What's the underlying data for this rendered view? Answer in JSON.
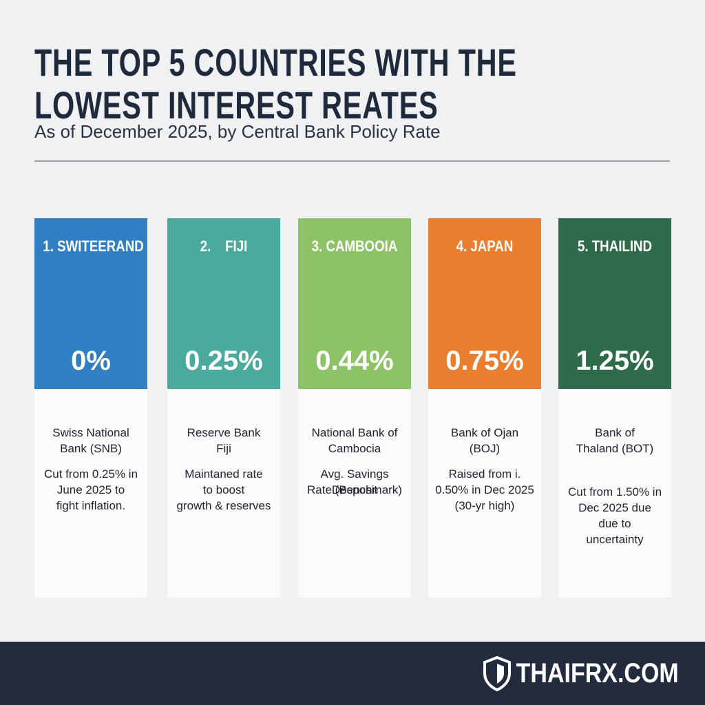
{
  "header": {
    "title": [
      "THE TOP 5 COUNTRIES WITH THE",
      "LOWEST INTEREST REATES"
    ],
    "subtitle": "As of December 2025, by Central Bank Policy Rate"
  },
  "cards": [
    {
      "label": "1. SWITEERAND",
      "value": "0%",
      "color": "#2f7fc2",
      "bank": [
        "Swiss National",
        "Bank (SNB)"
      ],
      "note": [
        "Cut from 0.25% in",
        "June 2025 to",
        "fight inflation."
      ]
    },
    {
      "label": "2.    FIJI",
      "value": "0.25%",
      "color": "#4aab9c",
      "bank": [
        "Reserve Bank",
        "Fiji"
      ],
      "note": [
        "Maintaned rate",
        "to boost",
        "growth & reserves"
      ]
    },
    {
      "label": "3. CAMBOOIA",
      "value": "0.44%",
      "color": "#8ec266",
      "bank": [
        "National Bank of",
        "Cambocia"
      ],
      "note": [
        "Avg. Savings Desposit",
        "Rate (Benchmark)"
      ]
    },
    {
      "label": "4. JAPAN",
      "value": "0.75%",
      "color": "#e87e2e",
      "bank": [
        "Bank of Ojan",
        "(BOJ)"
      ],
      "note": [
        "Raised from i.",
        "0.50% in Dec 2025",
        "(30-yr high)"
      ]
    },
    {
      "label": "5. THAILIND",
      "value": "1.25%",
      "color": "#2e6b4a",
      "bank": [
        "Bank of",
        "Thaland (BOT)"
      ],
      "note": [
        "Cut from 1.50% in",
        "Dec 2025 due",
        "due to",
        "uncertainty"
      ]
    }
  ],
  "footer": {
    "brand": "THAIFRX.COM"
  }
}
